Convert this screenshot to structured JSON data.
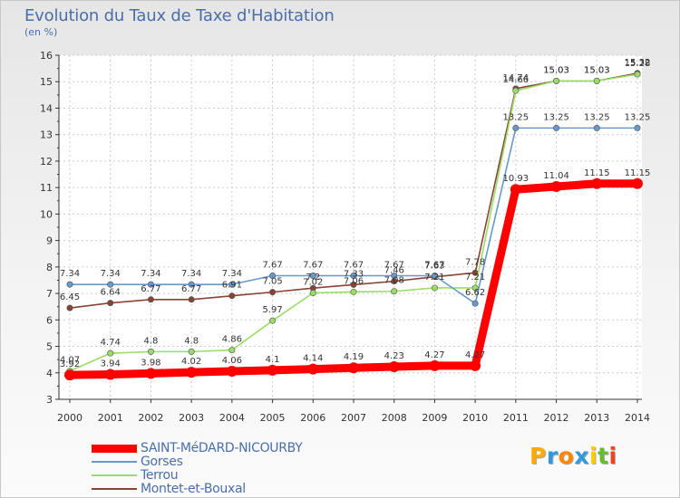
{
  "chart_data": {
    "type": "line",
    "title": "Evolution du Taux de Taxe d'Habitation",
    "subtitle": "(en %)",
    "xlabel": "",
    "ylabel": "",
    "ylim": [
      3,
      16
    ],
    "yticks": [
      "3",
      "4",
      "5",
      "6",
      "7",
      "8",
      "9",
      "10",
      "11",
      "12",
      "13",
      "14",
      "15",
      "16"
    ],
    "categories": [
      "2000",
      "2001",
      "2002",
      "2003",
      "2004",
      "2005",
      "2006",
      "2007",
      "2008",
      "2009",
      "2010",
      "2011",
      "2012",
      "2013",
      "2014"
    ],
    "grid": true,
    "legend_position": "bottom-left",
    "series": [
      {
        "name": "SAINT-MéDARD-NICOURBY",
        "color": "#ff0000",
        "values": [
          3.92,
          3.94,
          3.98,
          4.02,
          4.06,
          4.1,
          4.14,
          4.19,
          4.23,
          4.27,
          4.27,
          10.93,
          11.04,
          11.15,
          11.15
        ],
        "labels": [
          "3.92",
          "3.94",
          "3.98",
          "4.02",
          "4.06",
          "4.1",
          "4.14",
          "4.19",
          "4.23",
          "4.27",
          "4.27",
          "10.93",
          "11.04",
          "11.15",
          "11.15"
        ]
      },
      {
        "name": "Gorses",
        "color": "#6699cc",
        "values": [
          7.34,
          7.34,
          7.34,
          7.34,
          7.34,
          7.67,
          7.67,
          7.67,
          7.67,
          7.67,
          6.62,
          13.25,
          13.25,
          13.25,
          13.25
        ],
        "labels": [
          "7.34",
          "7.34",
          "7.34",
          "7.34",
          "7.34",
          "7.67",
          "7.67",
          "7.67",
          "7.67",
          "7.67",
          "6.62",
          "13.25",
          "13.25",
          "13.25",
          "13.25"
        ]
      },
      {
        "name": "Terrou",
        "color": "#99dd66",
        "values": [
          4.07,
          4.74,
          4.8,
          4.8,
          4.86,
          5.97,
          7.02,
          7.06,
          7.08,
          7.21,
          7.21,
          14.66,
          15.03,
          15.03,
          15.28
        ],
        "labels": [
          "4.07",
          "4.74",
          "4.8",
          "4.8",
          "4.86",
          "5.97",
          "7.02",
          "7.06",
          "7.08",
          "7.21",
          "7.21",
          "14.66",
          "15.03",
          "15.03",
          "15.28"
        ]
      },
      {
        "name": "Montet-et-Bouxal",
        "color": "#884433",
        "values": [
          6.45,
          6.64,
          6.77,
          6.77,
          6.91,
          7.05,
          7.2,
          7.33,
          7.46,
          7.63,
          7.78,
          14.74,
          15.03,
          15.03,
          15.32
        ],
        "labels": [
          "6.45",
          "6.64",
          "6.77",
          "6.77",
          "6.91",
          "7.05",
          "7.2",
          "7.33",
          "7.46",
          "7.63",
          "7.78",
          "14.74",
          "15.03",
          "15.03",
          "15.32"
        ]
      }
    ]
  },
  "logo": {
    "letters": [
      "P",
      "r",
      "o",
      "x",
      "i",
      "t",
      "i"
    ],
    "colors": [
      "#ffaa00",
      "#3399dd",
      "#ff8800",
      "#3399dd",
      "#ffcc00",
      "#66bb33",
      "#ee4422"
    ]
  }
}
